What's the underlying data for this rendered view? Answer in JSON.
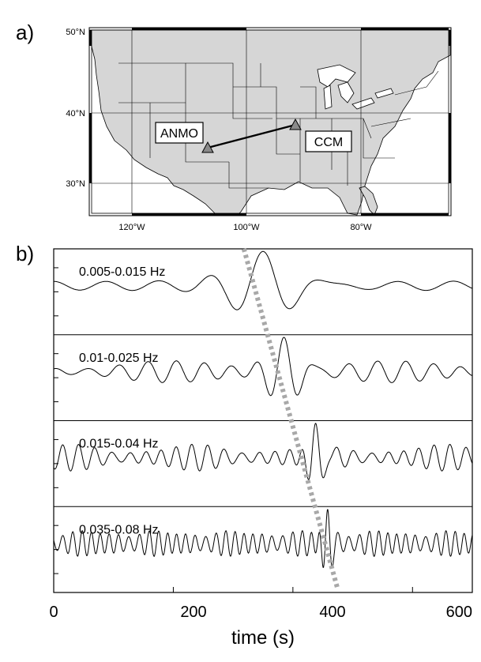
{
  "panel_a": {
    "label": "a)",
    "lat_labels": [
      "50°N",
      "40°N",
      "30°N"
    ],
    "lon_labels": [
      "120°W",
      "100°W",
      "80°W"
    ],
    "lat_values": [
      50,
      40,
      30
    ],
    "lon_values": [
      -120,
      -100,
      -80
    ],
    "stations": [
      {
        "name": "ANMO",
        "lat": 34.9,
        "lon": -106.5
      },
      {
        "name": "CCM",
        "lat": 38.1,
        "lon": -91.2
      }
    ],
    "colors": {
      "land": "#d6d6d6",
      "station": "#8a8a8a",
      "frame": "#000000"
    }
  },
  "panel_b": {
    "label": "b)",
    "xlabel": "time (s)",
    "xticks": [
      "0",
      "200",
      "400",
      "600"
    ],
    "dispersion_line_color": "#a8a8a8"
  },
  "chart_data": {
    "type": "line",
    "xlabel": "time (s)",
    "xlim": [
      0,
      700
    ],
    "xticks": [
      0,
      200,
      400,
      600
    ],
    "series": [
      {
        "name": "0.005-0.015 Hz",
        "period_s": 95,
        "peak_time_s": 350,
        "peak_amp": 1.0,
        "noise_amp": 0.18
      },
      {
        "name": "0.01-0.025 Hz",
        "period_s": 48,
        "peak_time_s": 385,
        "peak_amp": 1.0,
        "noise_amp": 0.3
      },
      {
        "name": "0.015-0.04 Hz",
        "period_s": 27,
        "peak_time_s": 438,
        "peak_amp": 1.0,
        "noise_amp": 0.38
      },
      {
        "name": "0.035-0.08 Hz",
        "period_s": 16,
        "peak_time_s": 458,
        "peak_amp": 1.0,
        "noise_amp": 0.42
      }
    ],
    "dispersion_line": {
      "x": [
        318,
        475
      ],
      "y": [
        0,
        1
      ]
    },
    "grid": false
  }
}
